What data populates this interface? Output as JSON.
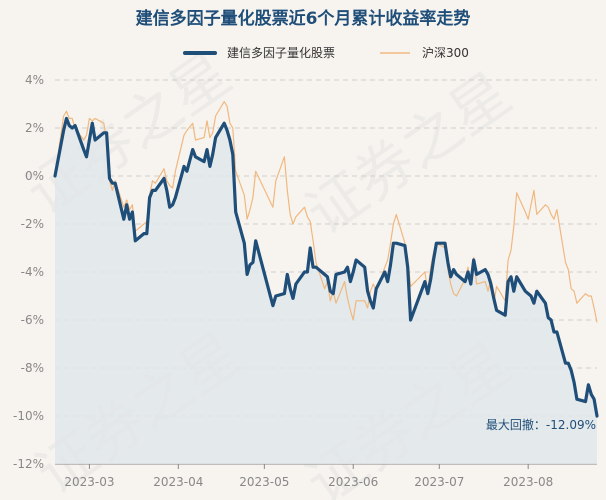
{
  "chart_data": {
    "type": "line",
    "title": "建信多因子量化股票近6个月累计收益率走势",
    "xlabel": "",
    "ylabel": "",
    "ylim": [
      -12,
      4
    ],
    "ytick_labels": [
      "4%",
      "2%",
      "0%",
      "-2%",
      "-4%",
      "-6%",
      "-8%",
      "-10%",
      "-12%"
    ],
    "xtick_labels": [
      "2023-03",
      "2023-04",
      "2023-05",
      "2023-06",
      "2023-07",
      "2023-08"
    ],
    "xtick_dates": [
      "2023-03-01",
      "2023-04-01",
      "2023-05-01",
      "2023-06-01",
      "2023-07-01",
      "2023-08-01"
    ],
    "date_range": [
      "2023-02-17",
      "2023-08-25"
    ],
    "grid": true,
    "legend_position": "top-center",
    "watermark": "证券之星",
    "annotation": "最大回撤：-12.09%",
    "colors": {
      "fund": "#1f4e79",
      "index": "#f0b87f",
      "area": "#e1e6ea",
      "title": "#1f4e79",
      "annotation": "#1f4e79"
    },
    "series": [
      {
        "name": "建信多因子量化股票",
        "values": [
          [
            "2023-02-17",
            0
          ],
          [
            "2023-02-20",
            1.9
          ],
          [
            "2023-02-21",
            2.4
          ],
          [
            "2023-02-22",
            2.1
          ],
          [
            "2023-02-23",
            2.0
          ],
          [
            "2023-02-24",
            2.1
          ],
          [
            "2023-02-27",
            1.1
          ],
          [
            "2023-02-28",
            0.8
          ],
          [
            "2023-03-01",
            1.5
          ],
          [
            "2023-03-02",
            2.2
          ],
          [
            "2023-03-03",
            1.5
          ],
          [
            "2023-03-06",
            1.8
          ],
          [
            "2023-03-07",
            1.8
          ],
          [
            "2023-03-08",
            -0.1
          ],
          [
            "2023-03-09",
            -0.3
          ],
          [
            "2023-03-10",
            -0.3
          ],
          [
            "2023-03-13",
            -1.8
          ],
          [
            "2023-03-14",
            -1.2
          ],
          [
            "2023-03-15",
            -1.8
          ],
          [
            "2023-03-16",
            -1.5
          ],
          [
            "2023-03-17",
            -2.7
          ],
          [
            "2023-03-20",
            -2.4
          ],
          [
            "2023-03-21",
            -2.4
          ],
          [
            "2023-03-22",
            -0.9
          ],
          [
            "2023-03-23",
            -0.6
          ],
          [
            "2023-03-24",
            -0.6
          ],
          [
            "2023-03-27",
            -0.1
          ],
          [
            "2023-03-28",
            -0.6
          ],
          [
            "2023-03-29",
            -1.3
          ],
          [
            "2023-03-30",
            -1.2
          ],
          [
            "2023-03-31",
            -0.9
          ],
          [
            "2023-04-03",
            0.4
          ],
          [
            "2023-04-04",
            0.2
          ],
          [
            "2023-04-06",
            1.1
          ],
          [
            "2023-04-07",
            0.8
          ],
          [
            "2023-04-10",
            0.6
          ],
          [
            "2023-04-11",
            1.1
          ],
          [
            "2023-04-12",
            0.4
          ],
          [
            "2023-04-13",
            0.9
          ],
          [
            "2023-04-14",
            1.6
          ],
          [
            "2023-04-17",
            2.2
          ],
          [
            "2023-04-18",
            1.9
          ],
          [
            "2023-04-19",
            1.5
          ],
          [
            "2023-04-20",
            0.9
          ],
          [
            "2023-04-21",
            -1.5
          ],
          [
            "2023-04-24",
            -2.8
          ],
          [
            "2023-04-25",
            -4.1
          ],
          [
            "2023-04-26",
            -3.7
          ],
          [
            "2023-04-27",
            -3.6
          ],
          [
            "2023-04-28",
            -2.7
          ],
          [
            "2023-05-04",
            -5.4
          ],
          [
            "2023-05-05",
            -5.0
          ],
          [
            "2023-05-08",
            -4.9
          ],
          [
            "2023-05-09",
            -4.1
          ],
          [
            "2023-05-10",
            -4.7
          ],
          [
            "2023-05-11",
            -5.1
          ],
          [
            "2023-05-12",
            -4.5
          ],
          [
            "2023-05-15",
            -4.0
          ],
          [
            "2023-05-16",
            -4.0
          ],
          [
            "2023-05-17",
            -3.0
          ],
          [
            "2023-05-18",
            -3.8
          ],
          [
            "2023-05-19",
            -3.8
          ],
          [
            "2023-05-22",
            -4.1
          ],
          [
            "2023-05-23",
            -4.2
          ],
          [
            "2023-05-24",
            -4.8
          ],
          [
            "2023-05-25",
            -4.9
          ],
          [
            "2023-05-26",
            -4.1
          ],
          [
            "2023-05-29",
            -4.0
          ],
          [
            "2023-05-30",
            -3.8
          ],
          [
            "2023-05-31",
            -4.4
          ],
          [
            "2023-06-01",
            -4.0
          ],
          [
            "2023-06-02",
            -3.5
          ],
          [
            "2023-06-05",
            -3.8
          ],
          [
            "2023-06-06",
            -4.8
          ],
          [
            "2023-06-07",
            -5.2
          ],
          [
            "2023-06-08",
            -5.5
          ],
          [
            "2023-06-09",
            -4.7
          ],
          [
            "2023-06-12",
            -4.0
          ],
          [
            "2023-06-13",
            -4.4
          ],
          [
            "2023-06-14",
            -3.7
          ],
          [
            "2023-06-15",
            -2.8
          ],
          [
            "2023-06-16",
            -2.8
          ],
          [
            "2023-06-19",
            -2.9
          ],
          [
            "2023-06-20",
            -3.8
          ],
          [
            "2023-06-21",
            -6.0
          ],
          [
            "2023-06-26",
            -4.4
          ],
          [
            "2023-06-27",
            -4.9
          ],
          [
            "2023-06-28",
            -4.3
          ],
          [
            "2023-06-29",
            -3.5
          ],
          [
            "2023-06-30",
            -2.8
          ],
          [
            "2023-07-03",
            -2.8
          ],
          [
            "2023-07-04",
            -3.6
          ],
          [
            "2023-07-05",
            -4.2
          ],
          [
            "2023-07-06",
            -3.9
          ],
          [
            "2023-07-07",
            -4.1
          ],
          [
            "2023-07-10",
            -4.4
          ],
          [
            "2023-07-11",
            -4.0
          ],
          [
            "2023-07-12",
            -4.5
          ],
          [
            "2023-07-13",
            -3.5
          ],
          [
            "2023-07-14",
            -4.1
          ],
          [
            "2023-07-17",
            -3.9
          ],
          [
            "2023-07-18",
            -4.1
          ],
          [
            "2023-07-19",
            -4.5
          ],
          [
            "2023-07-20",
            -5.1
          ],
          [
            "2023-07-21",
            -5.6
          ],
          [
            "2023-07-24",
            -5.8
          ],
          [
            "2023-07-25",
            -4.4
          ],
          [
            "2023-07-26",
            -4.2
          ],
          [
            "2023-07-27",
            -4.8
          ],
          [
            "2023-07-28",
            -4.2
          ],
          [
            "2023-07-31",
            -4.8
          ],
          [
            "2023-08-01",
            -4.9
          ],
          [
            "2023-08-02",
            -5.0
          ],
          [
            "2023-08-03",
            -5.3
          ],
          [
            "2023-08-04",
            -4.8
          ],
          [
            "2023-08-07",
            -5.3
          ],
          [
            "2023-08-08",
            -5.9
          ],
          [
            "2023-08-09",
            -6.0
          ],
          [
            "2023-08-10",
            -6.5
          ],
          [
            "2023-08-11",
            -6.5
          ],
          [
            "2023-08-14",
            -7.8
          ],
          [
            "2023-08-15",
            -7.8
          ],
          [
            "2023-08-16",
            -8.1
          ],
          [
            "2023-08-17",
            -8.6
          ],
          [
            "2023-08-18",
            -9.3
          ],
          [
            "2023-08-21",
            -9.4
          ],
          [
            "2023-08-22",
            -8.7
          ],
          [
            "2023-08-23",
            -9.1
          ],
          [
            "2023-08-24",
            -9.3
          ],
          [
            "2023-08-25",
            -10.0
          ]
        ]
      },
      {
        "name": "沪深300",
        "values": [
          [
            "2023-02-17",
            0
          ],
          [
            "2023-02-20",
            2.5
          ],
          [
            "2023-02-21",
            2.7
          ],
          [
            "2023-02-22",
            2.4
          ],
          [
            "2023-02-23",
            2.4
          ],
          [
            "2023-02-24",
            2.0
          ],
          [
            "2023-02-27",
            1.5
          ],
          [
            "2023-02-28",
            1.7
          ],
          [
            "2023-03-01",
            2.4
          ],
          [
            "2023-03-02",
            2.3
          ],
          [
            "2023-03-03",
            2.4
          ],
          [
            "2023-03-06",
            2.2
          ],
          [
            "2023-03-07",
            1.5
          ],
          [
            "2023-03-08",
            -0.2
          ],
          [
            "2023-03-09",
            -0.6
          ],
          [
            "2023-03-10",
            -0.2
          ],
          [
            "2023-03-13",
            -1.3
          ],
          [
            "2023-03-14",
            -1.0
          ],
          [
            "2023-03-15",
            -1.4
          ],
          [
            "2023-03-16",
            -1.2
          ],
          [
            "2023-03-17",
            -2.3
          ],
          [
            "2023-03-20",
            -2.0
          ],
          [
            "2023-03-21",
            -1.9
          ],
          [
            "2023-03-22",
            -0.8
          ],
          [
            "2023-03-23",
            -0.2
          ],
          [
            "2023-03-24",
            -0.3
          ],
          [
            "2023-03-27",
            0.3
          ],
          [
            "2023-03-28",
            -0.2
          ],
          [
            "2023-03-29",
            -0.4
          ],
          [
            "2023-03-30",
            -0.5
          ],
          [
            "2023-03-31",
            0.2
          ],
          [
            "2023-04-03",
            1.7
          ],
          [
            "2023-04-04",
            1.9
          ],
          [
            "2023-04-06",
            2.2
          ],
          [
            "2023-04-07",
            1.5
          ],
          [
            "2023-04-10",
            1.6
          ],
          [
            "2023-04-11",
            2.3
          ],
          [
            "2023-04-12",
            1.6
          ],
          [
            "2023-04-13",
            1.8
          ],
          [
            "2023-04-14",
            2.5
          ],
          [
            "2023-04-17",
            3.1
          ],
          [
            "2023-04-18",
            2.9
          ],
          [
            "2023-04-19",
            2.2
          ],
          [
            "2023-04-20",
            2.0
          ],
          [
            "2023-04-21",
            0.2
          ],
          [
            "2023-04-24",
            -0.8
          ],
          [
            "2023-04-25",
            -1.8
          ],
          [
            "2023-04-26",
            -1.4
          ],
          [
            "2023-04-27",
            -0.9
          ],
          [
            "2023-04-28",
            0.2
          ],
          [
            "2023-05-04",
            -1.3
          ],
          [
            "2023-05-05",
            -0.2
          ],
          [
            "2023-05-08",
            0.8
          ],
          [
            "2023-05-09",
            -0.6
          ],
          [
            "2023-05-10",
            -1.6
          ],
          [
            "2023-05-11",
            -2.0
          ],
          [
            "2023-05-12",
            -1.7
          ],
          [
            "2023-05-15",
            -1.3
          ],
          [
            "2023-05-16",
            -1.7
          ],
          [
            "2023-05-17",
            -1.9
          ],
          [
            "2023-05-18",
            -2.7
          ],
          [
            "2023-05-19",
            -3.6
          ],
          [
            "2023-05-22",
            -4.7
          ],
          [
            "2023-05-23",
            -4.4
          ],
          [
            "2023-05-24",
            -5.2
          ],
          [
            "2023-05-25",
            -4.8
          ],
          [
            "2023-05-26",
            -5.3
          ],
          [
            "2023-05-29",
            -4.4
          ],
          [
            "2023-05-30",
            -5.1
          ],
          [
            "2023-05-31",
            -5.6
          ],
          [
            "2023-06-01",
            -6.0
          ],
          [
            "2023-06-02",
            -5.2
          ],
          [
            "2023-06-05",
            -5.2
          ],
          [
            "2023-06-06",
            -5.5
          ],
          [
            "2023-06-07",
            -4.8
          ],
          [
            "2023-06-08",
            -4.5
          ],
          [
            "2023-06-09",
            -4.8
          ],
          [
            "2023-06-12",
            -3.8
          ],
          [
            "2023-06-13",
            -3.5
          ],
          [
            "2023-06-14",
            -2.8
          ],
          [
            "2023-06-15",
            -2.0
          ],
          [
            "2023-06-16",
            -1.6
          ],
          [
            "2023-06-19",
            -2.8
          ],
          [
            "2023-06-20",
            -3.4
          ],
          [
            "2023-06-21",
            -4.6
          ],
          [
            "2023-06-26",
            -4.0
          ],
          [
            "2023-06-27",
            -4.8
          ],
          [
            "2023-06-28",
            -3.8
          ],
          [
            "2023-06-29",
            -3.2
          ],
          [
            "2023-06-30",
            -2.8
          ],
          [
            "2023-07-03",
            -3.0
          ],
          [
            "2023-07-04",
            -3.9
          ],
          [
            "2023-07-05",
            -4.5
          ],
          [
            "2023-07-06",
            -4.9
          ],
          [
            "2023-07-07",
            -5.0
          ],
          [
            "2023-07-10",
            -4.3
          ],
          [
            "2023-07-11",
            -3.8
          ],
          [
            "2023-07-12",
            -4.5
          ],
          [
            "2023-07-13",
            -3.4
          ],
          [
            "2023-07-14",
            -4.5
          ],
          [
            "2023-07-17",
            -4.4
          ],
          [
            "2023-07-18",
            -4.8
          ],
          [
            "2023-07-19",
            -4.3
          ],
          [
            "2023-07-20",
            -5.3
          ],
          [
            "2023-07-21",
            -4.6
          ],
          [
            "2023-07-24",
            -5.2
          ],
          [
            "2023-07-25",
            -3.5
          ],
          [
            "2023-07-26",
            -3.1
          ],
          [
            "2023-07-27",
            -2.1
          ],
          [
            "2023-07-28",
            -0.7
          ],
          [
            "2023-07-31",
            -1.5
          ],
          [
            "2023-08-01",
            -1.8
          ],
          [
            "2023-08-02",
            -1.2
          ],
          [
            "2023-08-03",
            -0.6
          ],
          [
            "2023-08-04",
            -1.6
          ],
          [
            "2023-08-07",
            -1.2
          ],
          [
            "2023-08-08",
            -1.3
          ],
          [
            "2023-08-09",
            -1.6
          ],
          [
            "2023-08-10",
            -1.8
          ],
          [
            "2023-08-11",
            -1.4
          ],
          [
            "2023-08-14",
            -3.6
          ],
          [
            "2023-08-15",
            -3.9
          ],
          [
            "2023-08-16",
            -4.7
          ],
          [
            "2023-08-17",
            -4.8
          ],
          [
            "2023-08-18",
            -5.3
          ],
          [
            "2023-08-21",
            -4.9
          ],
          [
            "2023-08-22",
            -5.0
          ],
          [
            "2023-08-23",
            -5.0
          ],
          [
            "2023-08-24",
            -5.5
          ],
          [
            "2023-08-25",
            -6.1
          ]
        ]
      }
    ]
  }
}
